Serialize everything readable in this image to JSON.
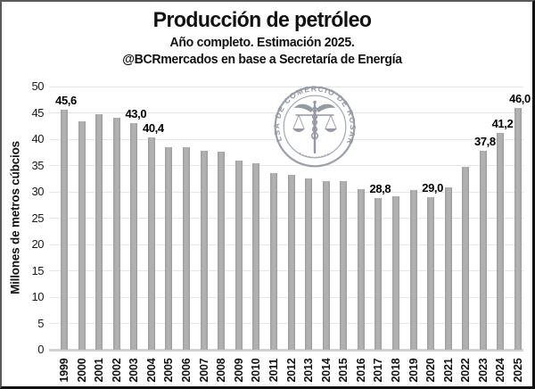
{
  "chart_data": {
    "type": "bar",
    "title": "Producción de petróleo",
    "subtitle1": "Año completo. Estimación 2025.",
    "subtitle2": "@BCRmercados en base a Secretaría de Energía",
    "ylabel": "Millones de metros cúbcios",
    "ylim": [
      0,
      50
    ],
    "ytick_step": 5,
    "grid": true,
    "legend": "none",
    "bar_color": "#a8a8a8",
    "categories": [
      "1999",
      "2000",
      "2001",
      "2002",
      "2003",
      "2004",
      "2005",
      "2006",
      "2007",
      "2008",
      "2009",
      "2010",
      "2011",
      "2012",
      "2013",
      "2014",
      "2015",
      "2016",
      "2017",
      "2018",
      "2019",
      "2020",
      "2021",
      "2022",
      "2023",
      "2024",
      "2025"
    ],
    "values": [
      45.6,
      43.4,
      44.7,
      44.0,
      43.0,
      40.4,
      38.5,
      38.4,
      37.8,
      37.6,
      36.0,
      35.4,
      33.5,
      33.3,
      32.6,
      32.0,
      32.1,
      30.5,
      28.8,
      29.2,
      30.4,
      29.0,
      30.8,
      34.7,
      37.8,
      41.2,
      46.0
    ],
    "data_labels": [
      {
        "year": "1999",
        "text": "45,6"
      },
      {
        "year": "2003",
        "text": "43,0"
      },
      {
        "year": "2004",
        "text": "40,4"
      },
      {
        "year": "2017",
        "text": "28,8"
      },
      {
        "year": "2020",
        "text": "29,0"
      },
      {
        "year": "2023",
        "text": "37,8"
      },
      {
        "year": "2024",
        "text": "41,2"
      },
      {
        "year": "2025",
        "text": "46,0"
      }
    ],
    "watermark_text": "BOLSA DE COMERCIO DE ROSARIO"
  }
}
